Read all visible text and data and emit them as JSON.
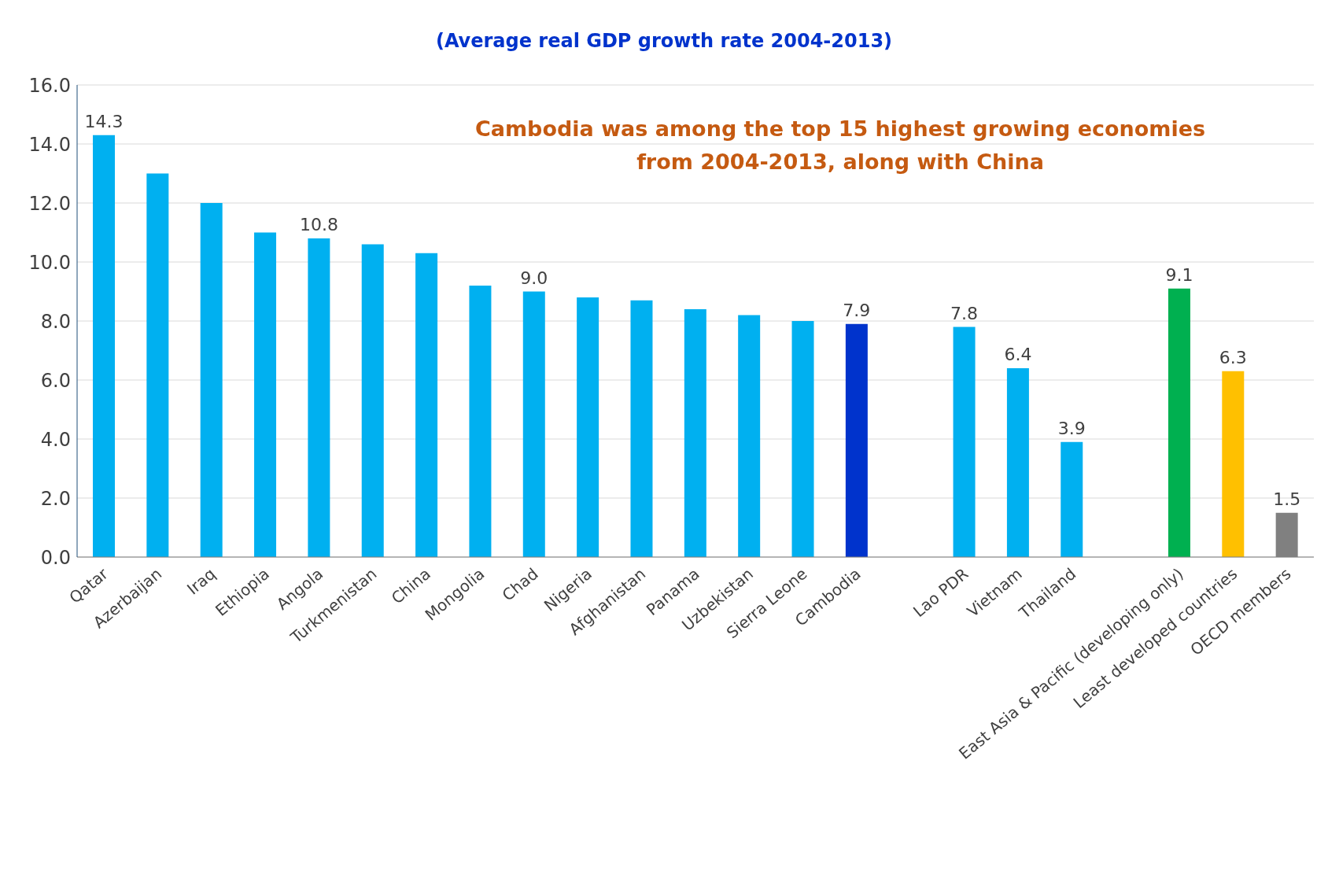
{
  "chart_data": {
    "type": "bar",
    "title": "(Average real GDP growth rate 2004-2013)",
    "annotations": [
      "Cambodia was among the top 15 highest growing economies from 2004-2013, along with China"
    ],
    "categories": [
      "Qatar",
      "Azerbaijan",
      "Iraq",
      "Ethiopia",
      "Angola",
      "Turkmenistan",
      "China",
      "Mongolia",
      "Chad",
      "Nigeria",
      "Afghanistan",
      "Panama",
      "Uzbekistan",
      "Sierra Leone",
      "Cambodia",
      null,
      "Lao PDR",
      "Vietnam",
      "Thailand",
      null,
      "East Asia & Pacific (developing only)",
      "Least developed countries",
      "OECD members"
    ],
    "values": [
      14.3,
      13.0,
      12.0,
      11.0,
      10.8,
      10.6,
      10.3,
      9.2,
      9.0,
      8.8,
      8.7,
      8.4,
      8.2,
      8.0,
      7.9,
      null,
      7.8,
      6.4,
      3.9,
      null,
      9.1,
      6.3,
      1.5
    ],
    "value_labels": [
      "14.3",
      null,
      null,
      null,
      "10.8",
      null,
      null,
      null,
      "9.0",
      null,
      null,
      null,
      null,
      null,
      "7.9",
      null,
      "7.8",
      "6.4",
      "3.9",
      null,
      "9.1",
      "6.3",
      "1.5"
    ],
    "colors": [
      "#00b0f0",
      "#00b0f0",
      "#00b0f0",
      "#00b0f0",
      "#00b0f0",
      "#00b0f0",
      "#00b0f0",
      "#00b0f0",
      "#00b0f0",
      "#00b0f0",
      "#00b0f0",
      "#00b0f0",
      "#00b0f0",
      "#00b0f0",
      "#0033cc",
      "#00b0f0",
      "#00b0f0",
      "#00b0f0",
      "#00b0f0",
      "#00b0f0",
      "#00b050",
      "#ffc000",
      "#808080"
    ],
    "ylim": [
      0,
      16
    ],
    "yticks": [
      {
        "value": 0,
        "label": "0.0"
      },
      {
        "value": 2,
        "label": "2.0"
      },
      {
        "value": 4,
        "label": "4.0"
      },
      {
        "value": 6,
        "label": "6.0"
      },
      {
        "value": 8,
        "label": "8.0"
      },
      {
        "value": 10,
        "label": "10.0"
      },
      {
        "value": 12,
        "label": "12.0"
      },
      {
        "value": 14,
        "label": "14.0"
      },
      {
        "value": 16,
        "label": "16.0"
      }
    ],
    "grid": "y"
  }
}
